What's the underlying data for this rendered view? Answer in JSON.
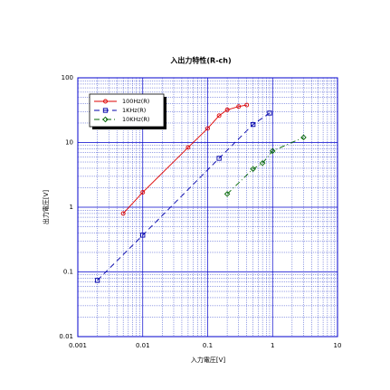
{
  "chart_data": {
    "type": "line",
    "title": "入出力特性(R-ch)",
    "x_label": "入力電圧[V]",
    "y_label": "出力電圧[V]",
    "log_x": true,
    "log_y": true,
    "grid": true,
    "xlim": [
      0.001,
      10
    ],
    "xticks": [
      0.001,
      0.01,
      0.1,
      1,
      10
    ],
    "ylim": [
      0.01,
      100
    ],
    "yticks": [
      0.01,
      0.1,
      1,
      10,
      100
    ],
    "legend": "upper left",
    "series": [
      {
        "name": "100Hz(R)",
        "color": "#dd0000",
        "marker": "circle",
        "dash": "solid",
        "x": [
          0.005,
          0.01,
          0.05,
          0.1,
          0.15,
          0.2,
          0.3,
          0.4
        ],
        "values": [
          0.8,
          1.7,
          8.4,
          16.5,
          26,
          32,
          36,
          38
        ]
      },
      {
        "name": "1KHz(R)",
        "color": "#0000aa",
        "marker": "square",
        "dash": "dashed",
        "x": [
          0.002,
          0.01,
          0.15,
          0.5,
          0.9
        ],
        "values": [
          0.074,
          0.37,
          5.7,
          19,
          28.5
        ]
      },
      {
        "name": "10KHz(R)",
        "color": "#006600",
        "marker": "diamond",
        "dash": "dashdot",
        "x": [
          0.2,
          0.5,
          0.7,
          1,
          3
        ],
        "values": [
          1.6,
          3.9,
          4.8,
          7.4,
          12
        ]
      }
    ]
  }
}
